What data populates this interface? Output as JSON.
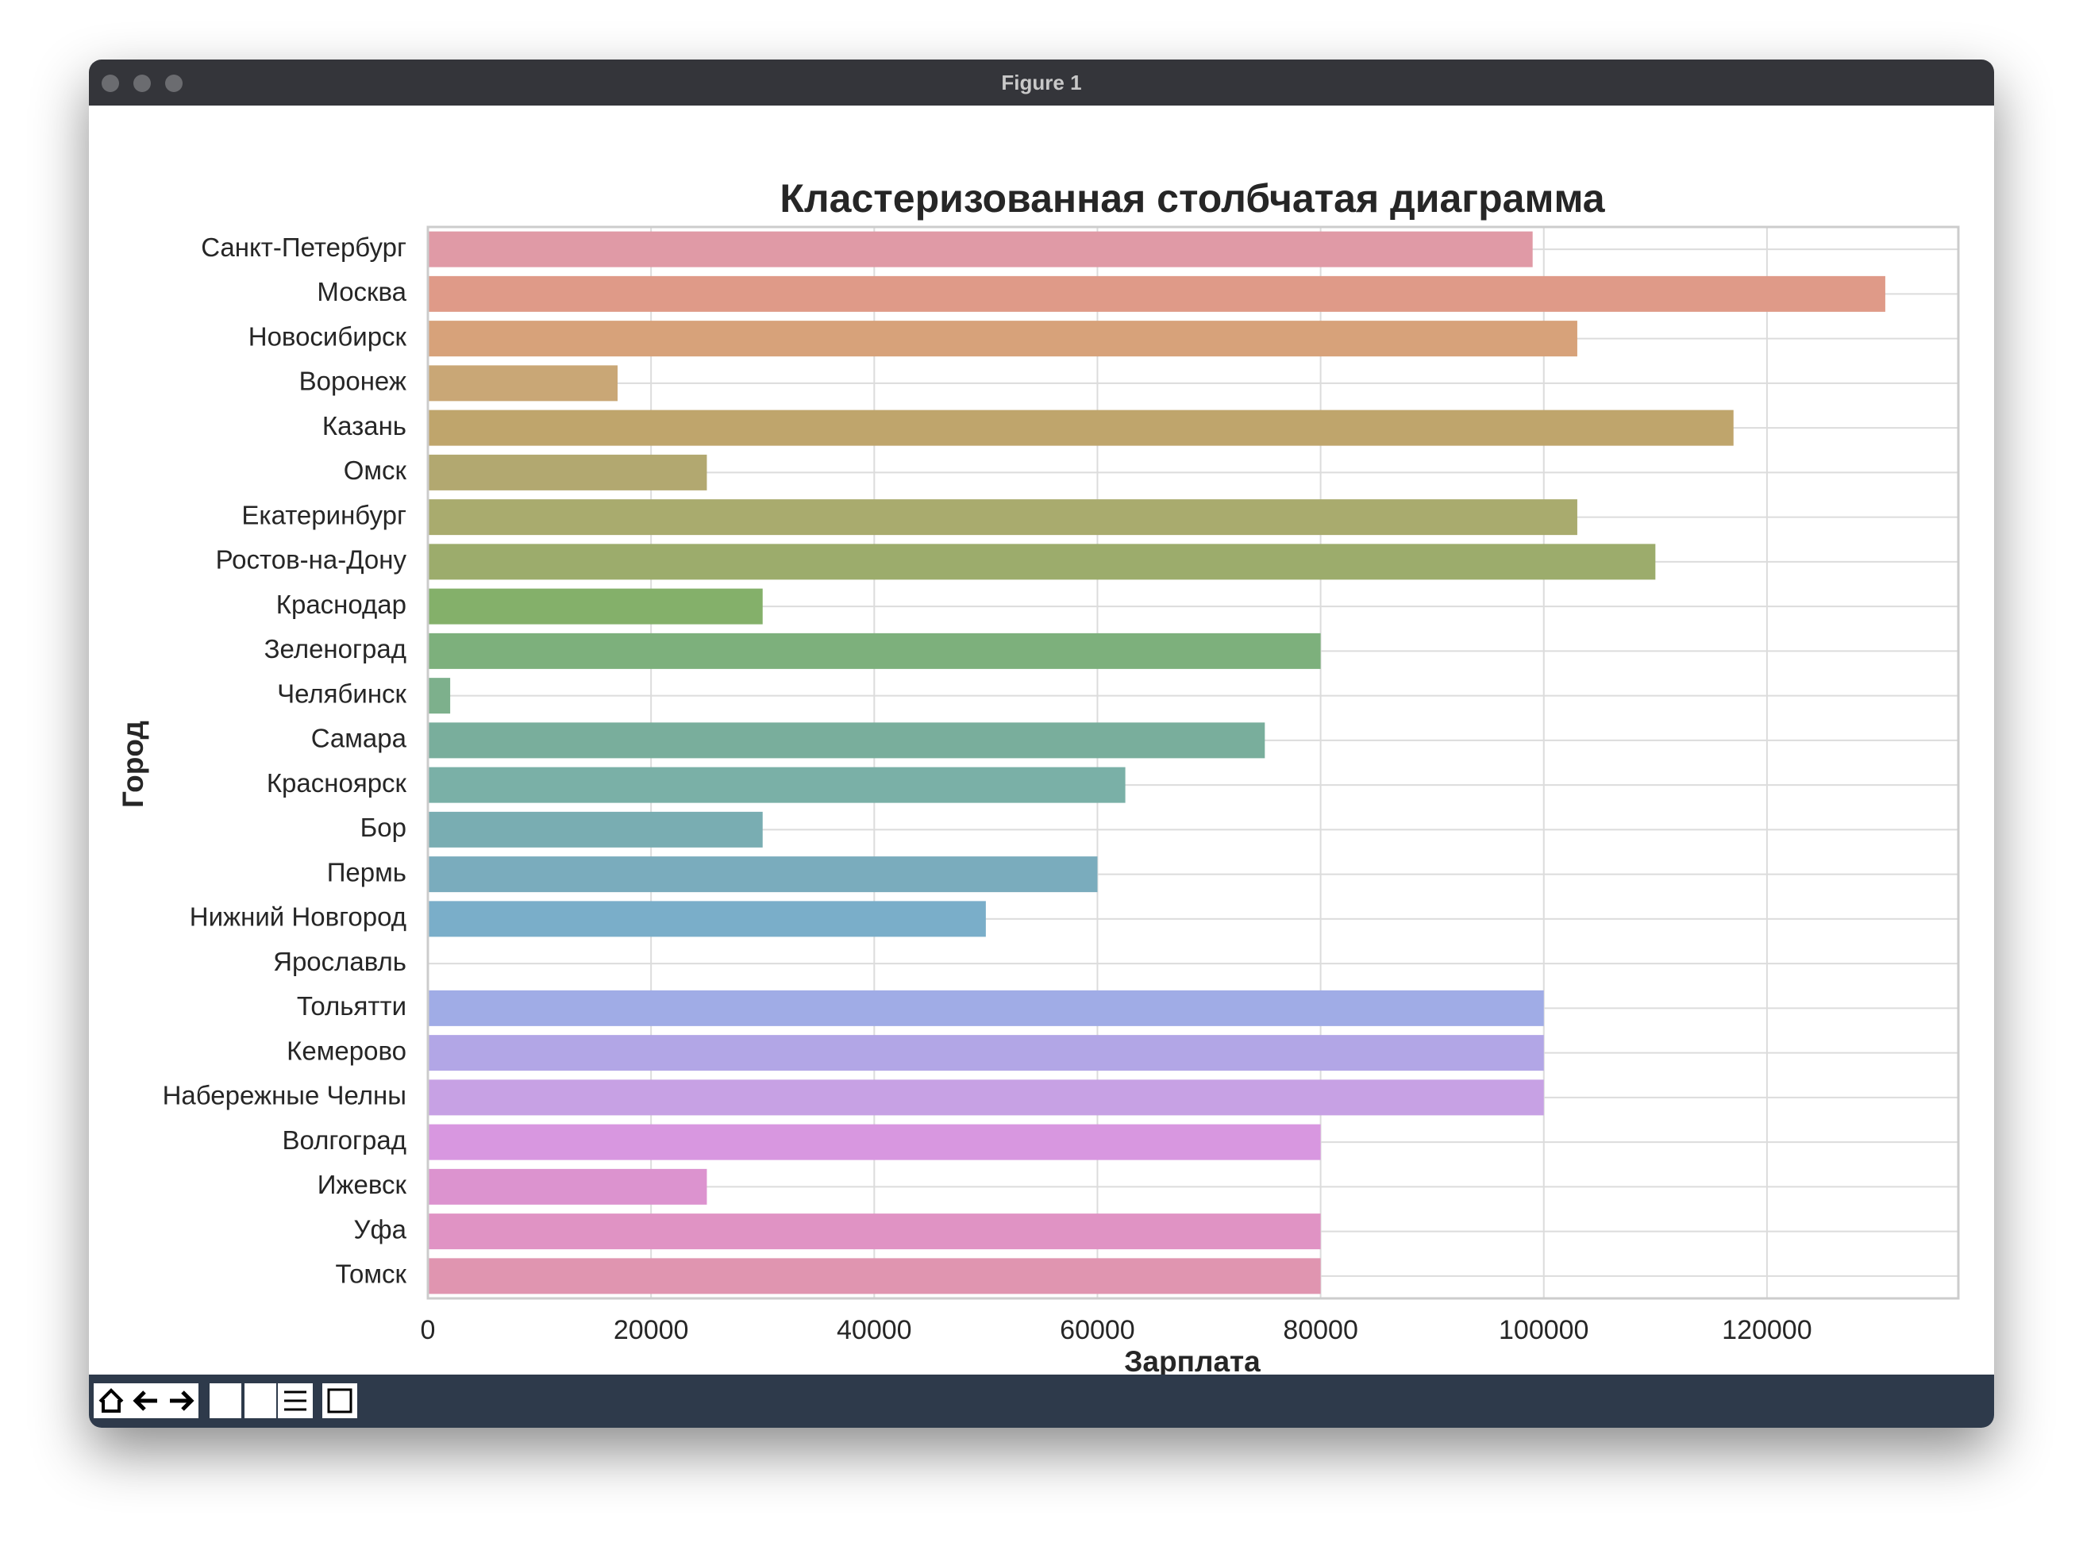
{
  "window": {
    "title": "Figure 1"
  },
  "chart_data": {
    "type": "barh",
    "title": "Кластеризованная столбчатая диаграмма",
    "x_label": "Зарплата",
    "y_label": "Город",
    "categories": [
      "Санкт-Петербург",
      "Москва",
      "Новосибирск",
      "Воронеж",
      "Казань",
      "Омск",
      "Екатеринбург",
      "Ростов-на-Дону",
      "Краснодар",
      "Зеленоград",
      "Челябинск",
      "Самара",
      "Красноярск",
      "Бор",
      "Пермь",
      "Нижний Новгород",
      "Ярославль",
      "Тольятти",
      "Кемерово",
      "Набережные Челны",
      "Волгоград",
      "Ижевск",
      "Уфа",
      "Томск"
    ],
    "values": [
      99000,
      130600,
      103000,
      17000,
      117000,
      25000,
      103000,
      110000,
      30000,
      80000,
      2000,
      75000,
      62500,
      30000,
      60000,
      50000,
      0,
      100000,
      100000,
      100000,
      80000,
      25000,
      80000,
      80000
    ],
    "colors": [
      "#e09aa6",
      "#df9a88",
      "#d7a27a",
      "#c9a776",
      "#bfa56c",
      "#b2a870",
      "#a9ab6e",
      "#9cac6c",
      "#84b06a",
      "#7db07c",
      "#7db08c",
      "#79ae9c",
      "#7ab0a7",
      "#79adb2",
      "#7aacbd",
      "#7aaec9",
      "#8cb0d8",
      "#a0ace6",
      "#b2a6e6",
      "#c7a1e4",
      "#d897e0",
      "#dc93cf",
      "#e093c4",
      "#e095b0"
    ],
    "xlim": [
      0,
      137150
    ],
    "xticks": [
      0,
      20000,
      40000,
      60000,
      80000,
      100000,
      120000
    ],
    "grid": true
  }
}
